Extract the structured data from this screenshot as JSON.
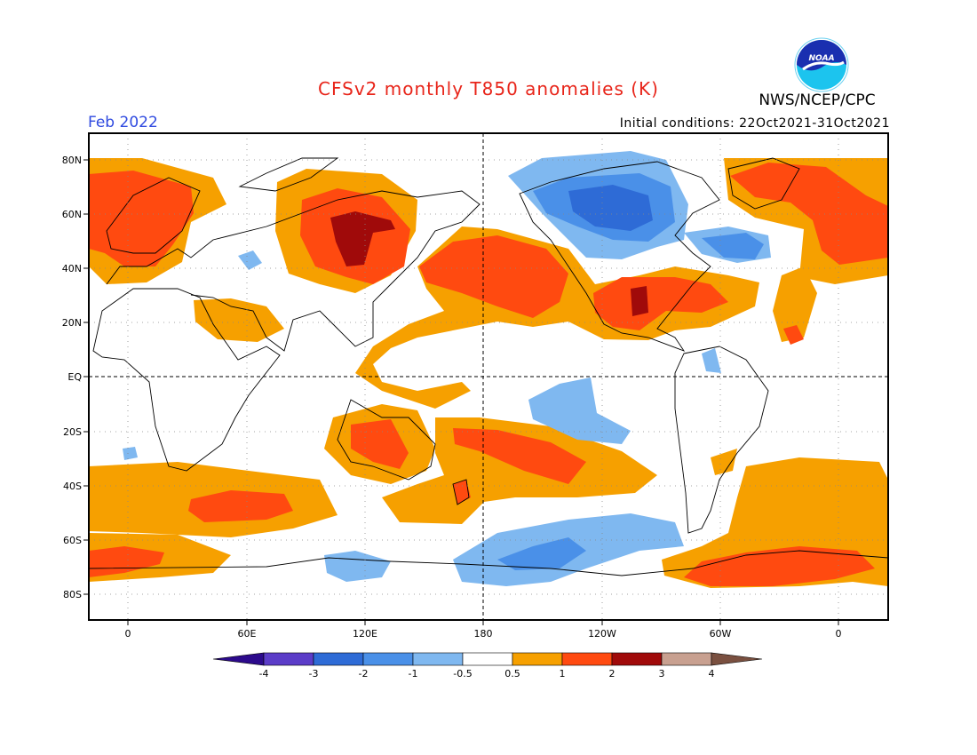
{
  "header": {
    "title": "CFSv2 monthly T850 anomalies (K)",
    "agency": "NWS/NCEP/CPC",
    "logo_text": "NOAA",
    "target_month": "Feb 2022",
    "initial_conditions": "Initial conditions: 22Oct2021-31Oct2021"
  },
  "map": {
    "lat_ticks": [
      "80N",
      "60N",
      "40N",
      "20N",
      "EQ",
      "20S",
      "40S",
      "60S",
      "80S"
    ],
    "lon_ticks": [
      "0",
      "60E",
      "120E",
      "180",
      "120W",
      "60W",
      "0"
    ],
    "reference_lines": [
      "equator",
      "dateline"
    ]
  },
  "colorbar": {
    "labels": [
      "-4",
      "-3",
      "-2",
      "-1",
      "-0.5",
      "0.5",
      "1",
      "2",
      "3",
      "4"
    ],
    "colors": [
      "#2c0a8c",
      "#5b3cc8",
      "#2e6bd6",
      "#4a90e8",
      "#7fb8f0",
      "#ffffff",
      "#f6a000",
      "#ff4a10",
      "#a00a0a",
      "#c8a090",
      "#7a5040"
    ]
  }
}
